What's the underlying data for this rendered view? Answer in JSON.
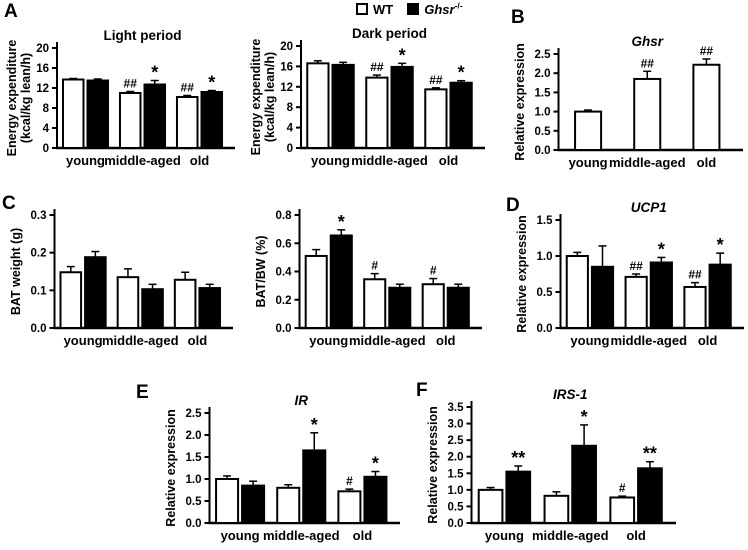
{
  "panels": {
    "A": "A",
    "B": "B",
    "C": "C",
    "D": "D",
    "E": "E",
    "F": "F"
  },
  "legend": {
    "items": [
      {
        "label": "WT",
        "fill": "#ffffff",
        "italic": false,
        "sup": ""
      },
      {
        "label": "Ghsr",
        "fill": "#000000",
        "italic": true,
        "sup": "-/-"
      }
    ]
  },
  "colors": {
    "bar_open": "#ffffff",
    "bar_filled": "#000000",
    "axis": "#000000",
    "background": "#ffffff"
  },
  "chart_data": [
    {
      "id": "a-light",
      "type": "bar",
      "title": "Light period",
      "title_italic": false,
      "ylabel_lines": [
        "Energy expenditure",
        "(kcal/kg lean/h)"
      ],
      "ylim": [
        0,
        20
      ],
      "yticks": [
        "0",
        "4",
        "8",
        "12",
        "16",
        "20"
      ],
      "categories": [
        "young",
        "middle-aged",
        "old"
      ],
      "series": [
        {
          "name": "WT",
          "fill": "#ffffff",
          "values": [
            13.7,
            11.0,
            10.2
          ],
          "errors": [
            0.2,
            0.3,
            0.3
          ],
          "annotations": [
            "",
            "##",
            "##"
          ]
        },
        {
          "name": "Ghsr-/-",
          "fill": "#000000",
          "values": [
            13.5,
            12.7,
            11.2
          ],
          "errors": [
            0.3,
            0.8,
            0.3
          ],
          "annotations": [
            "",
            "*",
            "*"
          ]
        }
      ]
    },
    {
      "id": "a-dark",
      "type": "bar",
      "title": "Dark period",
      "title_italic": false,
      "ylabel_lines": [
        "Energy expenditure",
        "(kcal/kg lean/h)"
      ],
      "ylim": [
        0,
        20
      ],
      "yticks": [
        "0",
        "4",
        "8",
        "12",
        "16",
        "20"
      ],
      "categories": [
        "young",
        "middle-aged",
        "old"
      ],
      "series": [
        {
          "name": "WT",
          "fill": "#ffffff",
          "values": [
            16.6,
            13.8,
            11.5
          ],
          "errors": [
            0.5,
            0.5,
            0.3
          ],
          "annotations": [
            "",
            "##",
            "##"
          ]
        },
        {
          "name": "Ghsr-/-",
          "fill": "#000000",
          "values": [
            16.3,
            15.9,
            12.8
          ],
          "errors": [
            0.5,
            0.7,
            0.4
          ],
          "annotations": [
            "",
            "*",
            "*"
          ]
        }
      ]
    },
    {
      "id": "b",
      "type": "bar",
      "title": "Ghsr",
      "title_italic": true,
      "ylabel_lines": [
        "Relative expression"
      ],
      "ylim": [
        0,
        2.5
      ],
      "yticks": [
        "0.0",
        "0.5",
        "1.0",
        "1.5",
        "2.0",
        "2.5"
      ],
      "categories": [
        "young",
        "middle-aged",
        "old"
      ],
      "series": [
        {
          "name": "WT",
          "fill": "#ffffff",
          "values": [
            1.0,
            1.85,
            2.22
          ],
          "errors": [
            0.04,
            0.2,
            0.15
          ],
          "annotations": [
            "",
            "##",
            "##"
          ]
        }
      ]
    },
    {
      "id": "c-left",
      "type": "bar",
      "title": "",
      "title_italic": false,
      "ylabel_lines": [
        "BAT weight (g)"
      ],
      "ylim": [
        0,
        0.3
      ],
      "yticks": [
        "0.0",
        "0.1",
        "0.2",
        "0.3"
      ],
      "categories": [
        "young",
        "middle-aged",
        "old"
      ],
      "series": [
        {
          "name": "WT",
          "fill": "#ffffff",
          "values": [
            0.148,
            0.135,
            0.128
          ],
          "errors": [
            0.015,
            0.022,
            0.02
          ],
          "annotations": [
            "",
            "",
            ""
          ]
        },
        {
          "name": "Ghsr-/-",
          "fill": "#000000",
          "values": [
            0.188,
            0.103,
            0.106
          ],
          "errors": [
            0.015,
            0.013,
            0.01
          ],
          "annotations": [
            "",
            "",
            ""
          ]
        }
      ]
    },
    {
      "id": "c-right",
      "type": "bar",
      "title": "",
      "title_italic": false,
      "ylabel_lines": [
        "BAT/BW (%)"
      ],
      "ylim": [
        0,
        0.8
      ],
      "yticks": [
        "0.0",
        "0.2",
        "0.4",
        "0.6",
        "0.8"
      ],
      "categories": [
        "young",
        "middle-aged",
        "old"
      ],
      "series": [
        {
          "name": "WT",
          "fill": "#ffffff",
          "values": [
            0.51,
            0.345,
            0.31
          ],
          "errors": [
            0.045,
            0.04,
            0.04
          ],
          "annotations": [
            "",
            "#",
            "#"
          ]
        },
        {
          "name": "Ghsr-/-",
          "fill": "#000000",
          "values": [
            0.655,
            0.285,
            0.285
          ],
          "errors": [
            0.04,
            0.025,
            0.025
          ],
          "annotations": [
            "*",
            "",
            ""
          ]
        }
      ]
    },
    {
      "id": "d",
      "type": "bar",
      "title": "UCP1",
      "title_italic": true,
      "ylabel_lines": [
        "Relative expression"
      ],
      "ylim": [
        0,
        1.5
      ],
      "yticks": [
        "0.0",
        "0.5",
        "1.0",
        "1.5"
      ],
      "categories": [
        "young",
        "middle-aged",
        "old"
      ],
      "series": [
        {
          "name": "WT",
          "fill": "#ffffff",
          "values": [
            1.0,
            0.71,
            0.57
          ],
          "errors": [
            0.05,
            0.04,
            0.06
          ],
          "annotations": [
            "",
            "##",
            "##"
          ]
        },
        {
          "name": "Ghsr-/-",
          "fill": "#000000",
          "values": [
            0.85,
            0.91,
            0.88
          ],
          "errors": [
            0.29,
            0.07,
            0.16
          ],
          "annotations": [
            "",
            "*",
            "*"
          ]
        }
      ]
    },
    {
      "id": "e",
      "type": "bar",
      "title": "IR",
      "title_italic": true,
      "ylabel_lines": [
        "Relative expression"
      ],
      "ylim": [
        0,
        2.5
      ],
      "yticks": [
        "0.0",
        "0.5",
        "1.0",
        "1.5",
        "2.0",
        "2.5"
      ],
      "categories": [
        "young",
        "middle-aged",
        "old"
      ],
      "series": [
        {
          "name": "WT",
          "fill": "#ffffff",
          "values": [
            1.0,
            0.8,
            0.72
          ],
          "errors": [
            0.07,
            0.07,
            0.05
          ],
          "annotations": [
            "",
            "",
            "#"
          ]
        },
        {
          "name": "Ghsr-/-",
          "fill": "#000000",
          "values": [
            0.85,
            1.65,
            1.05
          ],
          "errors": [
            0.1,
            0.4,
            0.12
          ],
          "annotations": [
            "",
            "*",
            "*"
          ]
        }
      ]
    },
    {
      "id": "f",
      "type": "bar",
      "title": "IRS-1",
      "title_italic": true,
      "ylabel_lines": [
        "Relative expression"
      ],
      "ylim": [
        0,
        3.5
      ],
      "yticks": [
        "0.0",
        "0.5",
        "1.0",
        "1.5",
        "2.0",
        "2.5",
        "3.0",
        "3.5"
      ],
      "categories": [
        "young",
        "middle-aged",
        "old"
      ],
      "series": [
        {
          "name": "WT",
          "fill": "#ffffff",
          "values": [
            1.0,
            0.82,
            0.77
          ],
          "errors": [
            0.07,
            0.12,
            0.04
          ],
          "annotations": [
            "",
            "",
            "#"
          ]
        },
        {
          "name": "Ghsr-/-",
          "fill": "#000000",
          "values": [
            1.55,
            2.33,
            1.65
          ],
          "errors": [
            0.17,
            0.63,
            0.2
          ],
          "annotations": [
            "**",
            "*",
            "**"
          ]
        }
      ]
    }
  ]
}
